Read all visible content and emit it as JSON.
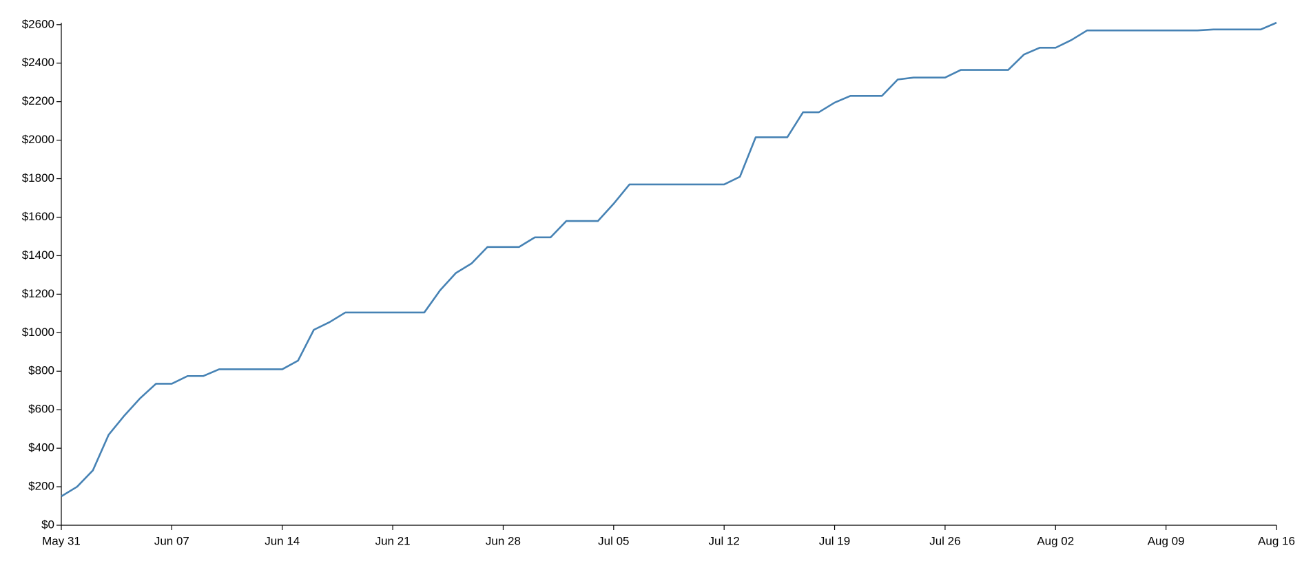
{
  "chart_data": {
    "type": "line",
    "categories": [
      "May 31",
      null,
      null,
      null,
      null,
      null,
      null,
      "Jun 07",
      null,
      null,
      null,
      null,
      null,
      null,
      "Jun 14",
      null,
      null,
      null,
      null,
      null,
      null,
      "Jun 21",
      null,
      null,
      null,
      null,
      null,
      null,
      "Jun 28",
      null,
      null,
      null,
      null,
      null,
      null,
      "Jul 05",
      null,
      null,
      null,
      null,
      null,
      null,
      "Jul 12",
      null,
      null,
      null,
      null,
      null,
      null,
      "Jul 19",
      null,
      null,
      null,
      null,
      null,
      null,
      "Jul 26",
      null,
      null,
      null,
      null,
      null,
      null,
      "Aug 02",
      null,
      null,
      null,
      null,
      null,
      null,
      "Aug 09",
      null,
      null,
      null,
      null,
      null,
      null,
      "Aug 16"
    ],
    "values": [
      150,
      200,
      285,
      470,
      570,
      660,
      735,
      735,
      775,
      775,
      810,
      810,
      810,
      810,
      810,
      855,
      1015,
      1055,
      1105,
      1105,
      1105,
      1105,
      1105,
      1105,
      1220,
      1310,
      1360,
      1445,
      1445,
      1445,
      1495,
      1495,
      1580,
      1580,
      1580,
      1670,
      1770,
      1770,
      1770,
      1770,
      1770,
      1770,
      1770,
      1810,
      2015,
      2015,
      2015,
      2145,
      2145,
      2195,
      2230,
      2230,
      2230,
      2315,
      2325,
      2325,
      2325,
      2365,
      2365,
      2365,
      2365,
      2445,
      2480,
      2480,
      2520,
      2570,
      2570,
      2570,
      2570,
      2570,
      2570,
      2570,
      2570,
      2575,
      2575,
      2575,
      2575,
      2610
    ],
    "color": "#4682b4",
    "ylim": [
      0,
      2610
    ],
    "yticks": [
      {
        "value": 0,
        "label": "$0"
      },
      {
        "value": 200,
        "label": "$200"
      },
      {
        "value": 400,
        "label": "$400"
      },
      {
        "value": 600,
        "label": "$600"
      },
      {
        "value": 800,
        "label": "$800"
      },
      {
        "value": 1000,
        "label": "$1000"
      },
      {
        "value": 1200,
        "label": "$1200"
      },
      {
        "value": 1400,
        "label": "$1400"
      },
      {
        "value": 1600,
        "label": "$1600"
      },
      {
        "value": 1800,
        "label": "$1800"
      },
      {
        "value": 2000,
        "label": "$2000"
      },
      {
        "value": 2200,
        "label": "$2200"
      },
      {
        "value": 2400,
        "label": "$2400"
      },
      {
        "value": 2600,
        "label": "$2600"
      }
    ],
    "grid": false
  }
}
